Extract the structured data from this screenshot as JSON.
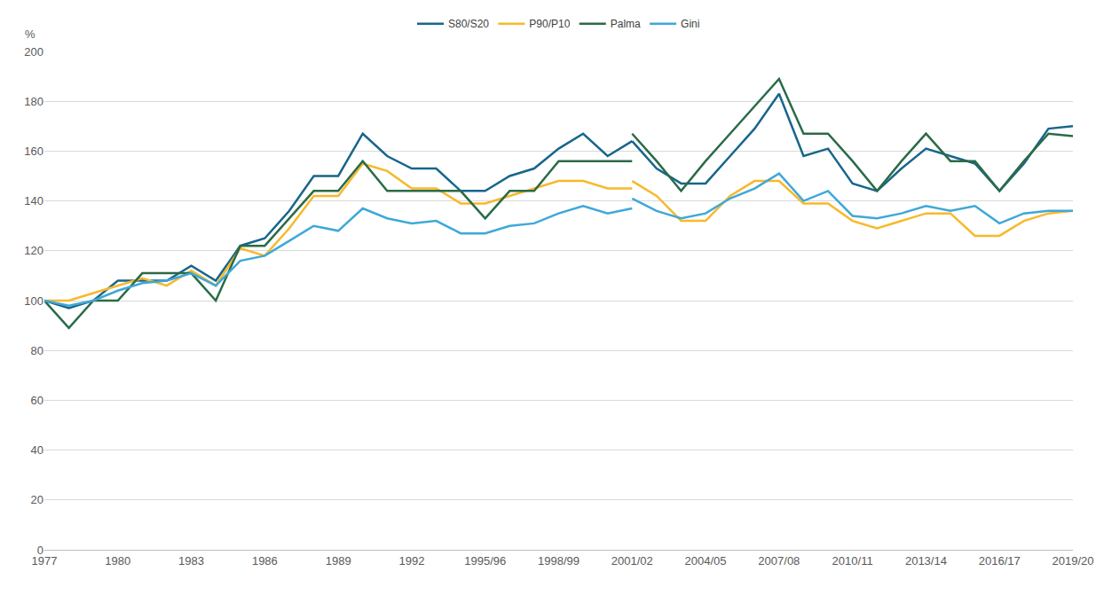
{
  "chart_data": {
    "type": "line",
    "y_label": "%",
    "categories": [
      "1977",
      null,
      null,
      "1980",
      null,
      null,
      "1983",
      null,
      null,
      "1986",
      null,
      null,
      "1989",
      null,
      null,
      "1992",
      null,
      null,
      "1995/96",
      null,
      null,
      "1998/99",
      null,
      null,
      "2001/02",
      null,
      null,
      "2004/05",
      null,
      null,
      "2007/08",
      null,
      null,
      "2010/11",
      null,
      null,
      "2013/14",
      null,
      null,
      "2016/17",
      null,
      null,
      "2019/20"
    ],
    "series": [
      {
        "name": "S80/S20",
        "color": "#17668c",
        "values": [
          100,
          97,
          100,
          108,
          108,
          108,
          114,
          108,
          122,
          125,
          136,
          150,
          150,
          167,
          158,
          153,
          153,
          144,
          144,
          150,
          153,
          161,
          167,
          158,
          164,
          null,
          null,
          null,
          null,
          null,
          null,
          null,
          null,
          null,
          null,
          null,
          null,
          null,
          null,
          null,
          null,
          null,
          null
        ]
      },
      {
        "name": "P90/P10",
        "color": "#f7b92b",
        "values": [
          100,
          100,
          103,
          106,
          109,
          106,
          112,
          106,
          121,
          118,
          129,
          142,
          142,
          155,
          152,
          145,
          145,
          139,
          139,
          142,
          145,
          148,
          148,
          145,
          145,
          null,
          null,
          null,
          null,
          null,
          null,
          null,
          null,
          null,
          null,
          null,
          null,
          null,
          null,
          null,
          null,
          null,
          null
        ]
      },
      {
        "name": "Palma",
        "color": "#2a6b47",
        "values": [
          100,
          89,
          100,
          100,
          111,
          111,
          111,
          100,
          122,
          122,
          133,
          144,
          144,
          156,
          144,
          144,
          144,
          144,
          133,
          144,
          144,
          156,
          156,
          156,
          156,
          null,
          null,
          null,
          null,
          null,
          null,
          null,
          null,
          null,
          null,
          null,
          null,
          null,
          null,
          null,
          null,
          null,
          null
        ]
      },
      {
        "name": "Gini",
        "color": "#3ea8d8",
        "values": [
          100,
          98,
          100,
          104,
          107,
          108,
          111,
          106,
          116,
          118,
          124,
          130,
          128,
          137,
          133,
          131,
          132,
          127,
          127,
          130,
          131,
          135,
          138,
          135,
          137,
          null,
          null,
          null,
          null,
          null,
          null,
          null,
          null,
          null,
          null,
          null,
          null,
          null,
          null,
          null,
          null,
          null,
          null
        ]
      },
      {
        "name": "S80/S20",
        "color": "#17668c",
        "values": [
          null,
          null,
          null,
          null,
          null,
          null,
          null,
          null,
          null,
          null,
          null,
          null,
          null,
          null,
          null,
          null,
          null,
          null,
          null,
          null,
          null,
          null,
          null,
          null,
          164,
          153,
          147,
          147,
          158,
          169,
          183,
          158,
          161,
          147,
          144,
          153,
          161,
          158,
          155,
          144,
          155,
          169,
          170
        ]
      },
      {
        "name": "P90/P10",
        "color": "#f7b92b",
        "values": [
          null,
          null,
          null,
          null,
          null,
          null,
          null,
          null,
          null,
          null,
          null,
          null,
          null,
          null,
          null,
          null,
          null,
          null,
          null,
          null,
          null,
          null,
          null,
          null,
          148,
          142,
          132,
          132,
          142,
          148,
          148,
          139,
          139,
          132,
          129,
          132,
          135,
          135,
          126,
          126,
          132,
          135,
          136
        ]
      },
      {
        "name": "Palma",
        "color": "#2a6b47",
        "values": [
          null,
          null,
          null,
          null,
          null,
          null,
          null,
          null,
          null,
          null,
          null,
          null,
          null,
          null,
          null,
          null,
          null,
          null,
          null,
          null,
          null,
          null,
          null,
          null,
          167,
          156,
          144,
          156,
          167,
          178,
          189,
          167,
          167,
          156,
          144,
          156,
          167,
          156,
          156,
          144,
          156,
          167,
          166
        ]
      },
      {
        "name": "Gini",
        "color": "#3ea8d8",
        "values": [
          null,
          null,
          null,
          null,
          null,
          null,
          null,
          null,
          null,
          null,
          null,
          null,
          null,
          null,
          null,
          null,
          null,
          null,
          null,
          null,
          null,
          null,
          null,
          null,
          141,
          136,
          133,
          135,
          141,
          145,
          151,
          140,
          144,
          134,
          133,
          135,
          138,
          136,
          138,
          131,
          135,
          136,
          136
        ]
      }
    ],
    "ylim": [
      0,
      200
    ],
    "yticks": [
      0,
      20,
      40,
      60,
      80,
      100,
      120,
      140,
      160,
      180,
      200
    ],
    "grid": true,
    "legend": "top"
  }
}
